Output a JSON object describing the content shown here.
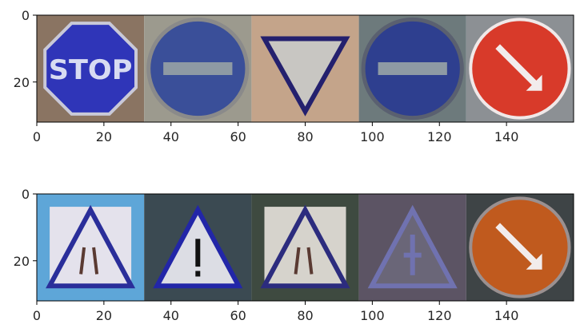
{
  "chart_data": [
    {
      "type": "image-grid",
      "xlim": [
        0,
        160
      ],
      "ylim": [
        32,
        0
      ],
      "xticks": [
        0,
        20,
        40,
        60,
        80,
        100,
        120,
        140
      ],
      "yticks": [
        0,
        20
      ],
      "grid": false,
      "tiles": [
        {
          "x0": 0,
          "x1": 32,
          "kind": "octagon-stop",
          "bg": "#8a7462",
          "fill": "#2f35b8",
          "border": "#c9c9d8",
          "text": "STOP"
        },
        {
          "x0": 32,
          "x1": 64,
          "kind": "circle-bar",
          "bg": "#9c9a8e",
          "fill": "#3a4f99",
          "border": "#8a8a8a"
        },
        {
          "x0": 64,
          "x1": 96,
          "kind": "triangle-down",
          "bg": "#c4a48a",
          "fill": "#c8c6c2",
          "border": "#24206e"
        },
        {
          "x0": 96,
          "x1": 128,
          "kind": "circle-bar",
          "bg": "#6d7a7c",
          "fill": "#2e3f8f",
          "border": "#5a6070"
        },
        {
          "x0": 128,
          "x1": 160,
          "kind": "circle-arrow",
          "bg": "#8c9094",
          "fill": "#d83a2a",
          "border": "#f0e8e8"
        }
      ]
    },
    {
      "type": "image-grid",
      "xlim": [
        0,
        160
      ],
      "ylim": [
        32,
        0
      ],
      "xticks": [
        0,
        20,
        40,
        60,
        80,
        100,
        120,
        140
      ],
      "yticks": [
        0,
        20
      ],
      "grid": false,
      "tiles": [
        {
          "x0": 0,
          "x1": 32,
          "kind": "square-triangle",
          "bg": "#5ea6d8",
          "fill": "#e4e2ec",
          "border": "#2a2e9a"
        },
        {
          "x0": 32,
          "x1": 64,
          "kind": "triangle-exclaim",
          "bg": "#3b4a52",
          "fill": "#dcdde4",
          "border": "#2226a8"
        },
        {
          "x0": 64,
          "x1": 96,
          "kind": "square-triangle",
          "bg": "#3e4a40",
          "fill": "#d6d3cc",
          "border": "#2c2c7e"
        },
        {
          "x0": 96,
          "x1": 128,
          "kind": "triangle-cross",
          "bg": "#5c5464",
          "fill": "#6a6678",
          "border": "#7072b0"
        },
        {
          "x0": 128,
          "x1": 160,
          "kind": "circle-arrow",
          "bg": "#3e4446",
          "fill": "#c05a1e",
          "border": "#9a9090"
        }
      ]
    }
  ]
}
